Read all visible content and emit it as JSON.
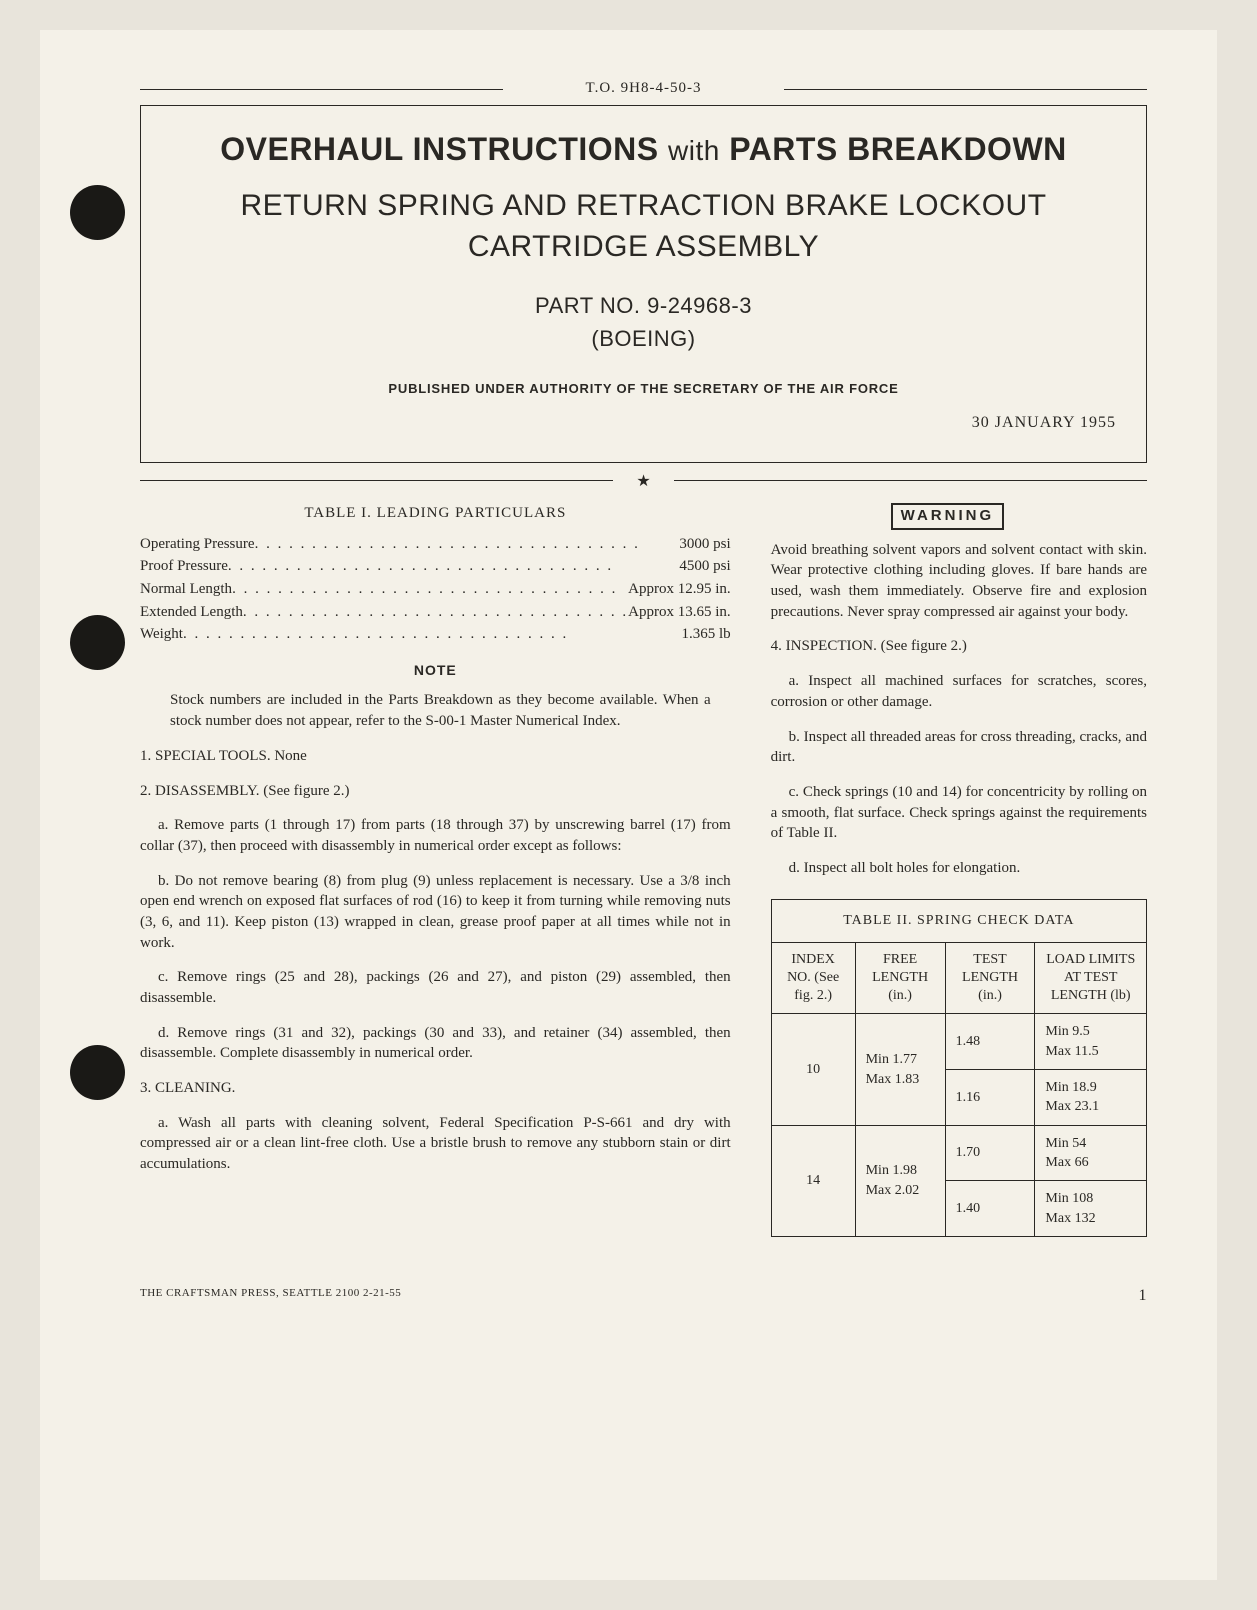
{
  "to_number": "T.O. 9H8-4-50-3",
  "header": {
    "title_main_a": "OVERHAUL INSTRUCTIONS",
    "title_main_with": "with",
    "title_main_b": "PARTS BREAKDOWN",
    "title_sub": "RETURN SPRING AND RETRACTION BRAKE LOCKOUT CARTRIDGE ASSEMBLY",
    "part_no_line": "PART NO. 9-24968-3",
    "mfr": "(BOEING)",
    "authority": "PUBLISHED UNDER AUTHORITY OF THE SECRETARY OF THE AIR FORCE",
    "date": "30 JANUARY 1955"
  },
  "table1": {
    "title": "TABLE I.  LEADING PARTICULARS",
    "rows": [
      {
        "label": "Operating Pressure",
        "value": "3000 psi"
      },
      {
        "label": "Proof Pressure",
        "value": "4500 psi"
      },
      {
        "label": "Normal Length",
        "value": "Approx 12.95 in."
      },
      {
        "label": "Extended Length",
        "value": "Approx 13.65 in."
      },
      {
        "label": "Weight",
        "value": "1.365 lb"
      }
    ]
  },
  "note": {
    "head": "NOTE",
    "body": "Stock numbers are included in the Parts Breakdown as they become available. When a stock number does not appear, refer to the S-00-1 Master Numerical Index."
  },
  "sec1": "1.  SPECIAL TOOLS.  None",
  "sec2": "2.  DISASSEMBLY.  (See figure 2.)",
  "p2a": "a.  Remove parts (1 through 17) from parts (18 through 37) by unscrewing barrel (17) from collar (37), then proceed with disassembly in numerical order except as follows:",
  "p2b": "b.  Do not remove bearing (8) from plug (9) unless replacement is necessary. Use a 3/8 inch open end wrench on exposed flat surfaces of rod (16) to keep it from turning while removing nuts (3, 6, and 11). Keep piston (13) wrapped in clean, grease proof paper at all times while not in work.",
  "p2c": "c.  Remove rings (25 and 28), packings (26 and 27), and piston (29) assembled, then disassemble.",
  "p2d": "d.  Remove rings (31 and 32), packings (30 and 33), and retainer (34) assembled, then disassemble. Complete disassembly in numerical order.",
  "sec3": "3.  CLEANING.",
  "p3a": "a.  Wash all parts with cleaning solvent, Federal Specification P-S-661 and dry with compressed air or a clean lint-free cloth. Use a bristle brush to remove any stubborn stain or dirt accumulations.",
  "warning": {
    "label": "WARNING",
    "text": "Avoid breathing solvent vapors and solvent contact with skin. Wear protective clothing including gloves. If bare hands are used, wash them immediately. Observe fire and explosion precautions. Never spray compressed air against your body."
  },
  "sec4": "4.  INSPECTION.  (See figure 2.)",
  "p4a": "a.  Inspect all machined surfaces for scratches, scores, corrosion or other damage.",
  "p4b": "b.  Inspect all threaded areas for cross threading, cracks, and dirt.",
  "p4c": "c.  Check springs (10 and 14) for concentricity by rolling on a smooth, flat surface. Check springs against the requirements of Table II.",
  "p4d": "d.  Inspect all bolt holes for elongation.",
  "table2": {
    "caption": "TABLE II.  SPRING CHECK DATA",
    "headers": {
      "index": "INDEX NO. (See fig. 2.)",
      "free": "FREE LENGTH (in.)",
      "test": "TEST LENGTH (in.)",
      "load": "LOAD LIMITS AT TEST LENGTH (lb)"
    },
    "rows": [
      {
        "index": "10",
        "free": "Min 1.77\nMax 1.83",
        "test": "1.48",
        "load": "Min 9.5\nMax 11.5"
      },
      {
        "index": "",
        "free": "",
        "test": "1.16",
        "load": "Min 18.9\nMax 23.1"
      },
      {
        "index": "14",
        "free": "Min 1.98\nMax 2.02",
        "test": "1.70",
        "load": "Min 54\nMax 66"
      },
      {
        "index": "",
        "free": "",
        "test": "1.40",
        "load": "Min 108\nMax 132"
      }
    ]
  },
  "footer": {
    "printer": "THE CRAFTSMAN PRESS, SEATTLE   2100   2-21-55",
    "pageno": "1"
  }
}
